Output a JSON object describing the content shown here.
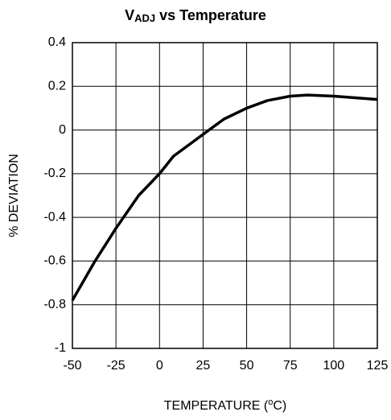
{
  "chart_data": {
    "type": "line",
    "title": [
      "V",
      "ADJ",
      " vs Temperature"
    ],
    "xlabel": [
      "TEMPERATURE (",
      "o",
      "C)"
    ],
    "ylabel": "% DEVIATION",
    "x": [
      -50,
      -37,
      -25,
      -12,
      0,
      8,
      25,
      37,
      50,
      62,
      75,
      85,
      100,
      125
    ],
    "series": [
      {
        "color": "#000000",
        "values": [
          -0.78,
          -0.6,
          -0.45,
          -0.3,
          -0.2,
          -0.12,
          -0.02,
          0.05,
          0.1,
          0.135,
          0.155,
          0.16,
          0.155,
          0.14
        ]
      }
    ],
    "xlim": [
      -50,
      125
    ],
    "xticks": [
      -50,
      -25,
      0,
      25,
      50,
      75,
      100,
      125
    ],
    "ylim": [
      -1,
      0.4
    ],
    "yticks": [
      0.4,
      0.2,
      0,
      -0.2,
      -0.4,
      -0.6,
      -0.8,
      -1
    ],
    "grid": true
  }
}
